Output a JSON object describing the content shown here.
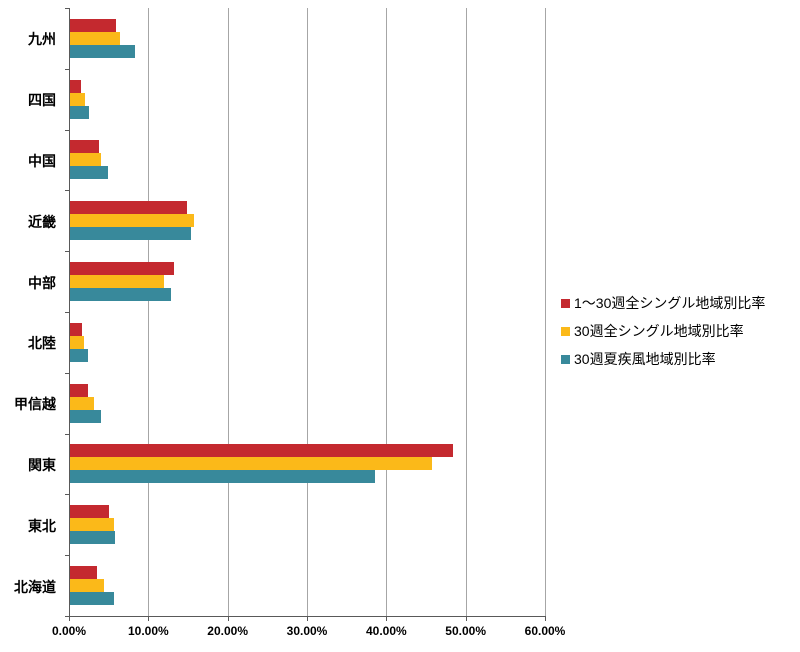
{
  "chart_data": {
    "type": "bar",
    "orientation": "horizontal",
    "title": "",
    "xlabel": "",
    "ylabel": "",
    "unit": "%",
    "categories_top_to_bottom": [
      "九州",
      "四国",
      "中国",
      "近畿",
      "中部",
      "北陸",
      "甲信越",
      "関東",
      "東北",
      "北海道"
    ],
    "series": [
      {
        "name": "1〜30週全シングル地域別比率",
        "color": "#C4292F",
        "values": [
          5.8,
          1.4,
          3.6,
          14.8,
          13.1,
          1.5,
          2.3,
          48.3,
          4.9,
          3.4
        ]
      },
      {
        "name": "30週全シングル地域別比率",
        "color": "#FBB919",
        "values": [
          6.3,
          1.9,
          3.9,
          15.6,
          11.8,
          1.8,
          3.0,
          45.6,
          5.5,
          4.3
        ]
      },
      {
        "name": "30週夏疾風地域別比率",
        "color": "#38899B",
        "values": [
          8.2,
          2.4,
          4.8,
          15.2,
          12.7,
          2.3,
          3.9,
          38.4,
          5.7,
          5.6
        ]
      }
    ],
    "x_axis": {
      "min": 0,
      "max": 60,
      "step": 10,
      "tick_labels": [
        "0.00%",
        "10.00%",
        "20.00%",
        "30.00%",
        "40.00%",
        "50.00%",
        "60.00%"
      ]
    },
    "legend_position": "right",
    "grid": true,
    "colors": {
      "gridline": "#A6A6A6",
      "axis": "#595959",
      "text": "#000000",
      "background": "#FFFFFF"
    }
  }
}
